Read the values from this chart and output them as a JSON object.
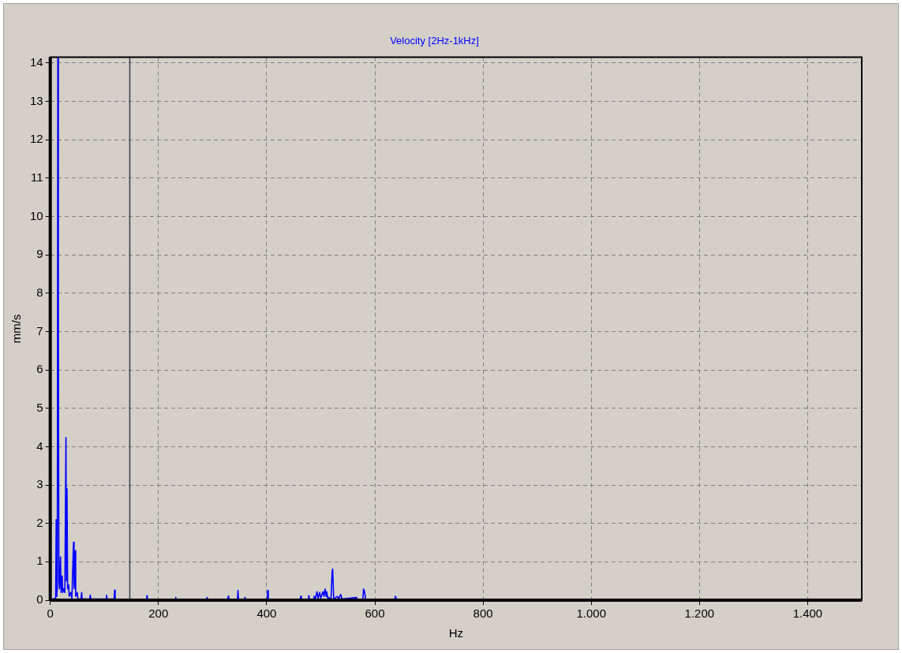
{
  "chart_data": {
    "type": "line",
    "title": "Velocity [2Hz-1kHz]",
    "xlabel": "Hz",
    "ylabel": "mm/s",
    "x": [
      2,
      10,
      11,
      12,
      13,
      14,
      15,
      16,
      17,
      19,
      20,
      22,
      23,
      25,
      27,
      29,
      30,
      31,
      32,
      34,
      35,
      38,
      40,
      43,
      44,
      46,
      47,
      50,
      51,
      57,
      58,
      59,
      73,
      74,
      75,
      103,
      104,
      105,
      118,
      119,
      120,
      178,
      179,
      180,
      231,
      232,
      233,
      289,
      290,
      291,
      328,
      329,
      330,
      346,
      347,
      348,
      359,
      360,
      361,
      401,
      402,
      403,
      462,
      463,
      464,
      477,
      478,
      479,
      487,
      488,
      490,
      493,
      495,
      498,
      500,
      504,
      506,
      508,
      510,
      511,
      513,
      515,
      519,
      521,
      522,
      524,
      531,
      533,
      537,
      539,
      566,
      568,
      578,
      579,
      581,
      583,
      637,
      638,
      640
    ],
    "series": [
      {
        "color": "#0000ff",
        "values": [
          0.02,
          0.05,
          2.1,
          0.1,
          0.3,
          14.15,
          7.0,
          0.5,
          0.3,
          1.13,
          0.2,
          0.63,
          0.2,
          0.3,
          0.2,
          4.24,
          0.5,
          2.9,
          0.3,
          0.4,
          0.1,
          0.2,
          0.05,
          1.51,
          0.3,
          1.29,
          0.1,
          0.2,
          0.03,
          0.03,
          0.2,
          0.03,
          0.03,
          0.13,
          0.03,
          0.03,
          0.13,
          0.03,
          0.03,
          0.26,
          0.02,
          0.02,
          0.12,
          0.02,
          0.02,
          0.07,
          0.02,
          0.02,
          0.07,
          0.02,
          0.02,
          0.1,
          0.02,
          0.02,
          0.25,
          0.02,
          0.02,
          0.07,
          0.02,
          0.02,
          0.25,
          0.02,
          0.02,
          0.1,
          0.02,
          0.02,
          0.12,
          0.02,
          0.03,
          0.1,
          0.03,
          0.22,
          0.05,
          0.2,
          0.05,
          0.22,
          0.1,
          0.29,
          0.1,
          0.22,
          0.05,
          0.07,
          0.03,
          0.74,
          0.81,
          0.03,
          0.1,
          0.03,
          0.15,
          0.03,
          0.07,
          0.02,
          0.02,
          0.29,
          0.22,
          0.02,
          0.02,
          0.1,
          0.02
        ]
      }
    ],
    "xlim": [
      0,
      1500
    ],
    "xticks": [
      0,
      200,
      400,
      600,
      800,
      {
        "value": 1000,
        "label": "1.000"
      },
      {
        "value": 1200,
        "label": "1.200"
      },
      {
        "value": 1400,
        "label": "1.400"
      }
    ],
    "ylim": [
      0,
      14.15
    ],
    "yticks": [
      0,
      1,
      2,
      3,
      4,
      5,
      6,
      7,
      8,
      9,
      10,
      11,
      12,
      13,
      14
    ],
    "ref_lines": [
      {
        "axis": "x",
        "value": 147,
        "color": "#3c3c50"
      }
    ],
    "grid": true,
    "legend": false,
    "marker": "none",
    "line_style": "solid"
  }
}
